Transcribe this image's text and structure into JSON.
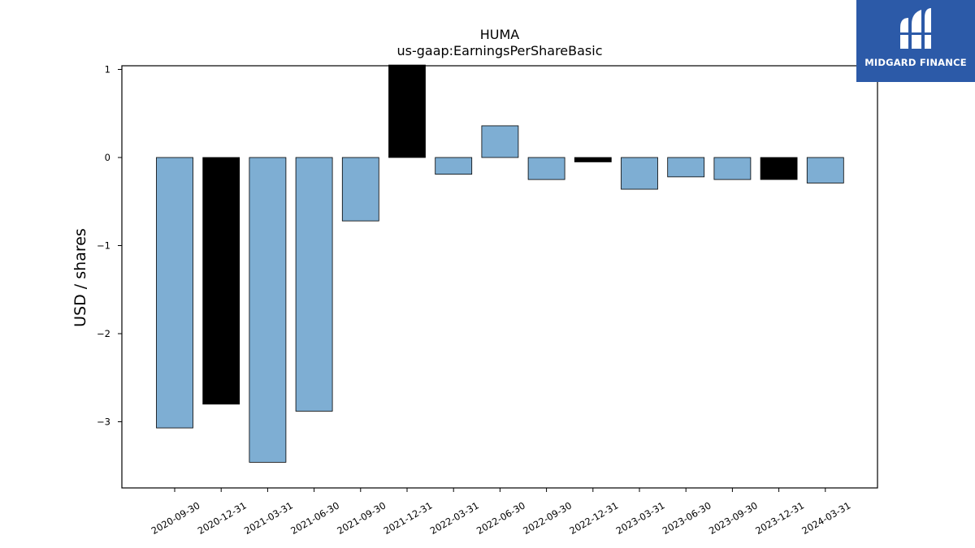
{
  "brand": {
    "name": "MIDGARD FINANCE",
    "logo_icon": "midgard-m-icon",
    "color": "#2c5aa8"
  },
  "chart_data": {
    "type": "bar",
    "title": "HUMA",
    "subtitle": "us-gaap:EarningsPerShareBasic",
    "xlabel": "",
    "ylabel": "USD / shares",
    "ylim": [
      -3.75,
      1.05
    ],
    "yticks": [
      1,
      0,
      -1,
      -2,
      -3
    ],
    "ytick_labels": [
      "1",
      "0",
      "−1",
      "−2",
      "−3"
    ],
    "grid": false,
    "categories": [
      "2020-09-30",
      "2020-12-31",
      "2021-03-31",
      "2021-06-30",
      "2021-09-30",
      "2021-12-31",
      "2022-03-31",
      "2022-06-30",
      "2022-09-30",
      "2022-12-31",
      "2023-03-31",
      "2023-06-30",
      "2023-09-30",
      "2023-12-31",
      "2024-03-31"
    ],
    "values": [
      -3.07,
      -2.8,
      -3.46,
      -2.88,
      -0.72,
      1.05,
      -0.19,
      0.36,
      -0.25,
      -0.05,
      -0.36,
      -0.22,
      -0.25,
      -0.25,
      -0.29
    ],
    "bar_colors": [
      "#7eaed3",
      "#000000",
      "#7eaed3",
      "#7eaed3",
      "#7eaed3",
      "#000000",
      "#7eaed3",
      "#7eaed3",
      "#7eaed3",
      "#000000",
      "#7eaed3",
      "#7eaed3",
      "#7eaed3",
      "#000000",
      "#7eaed3"
    ]
  }
}
